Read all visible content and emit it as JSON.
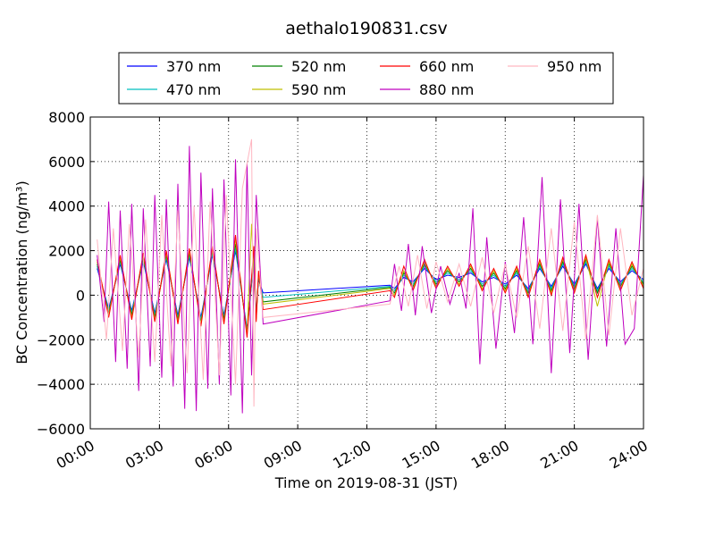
{
  "chart_data": {
    "type": "line",
    "title": "aethalo190831.csv",
    "xlabel": "Time on 2019-08-31 (JST)",
    "ylabel": "BC Concentration (ng/m³)",
    "xlim": [
      0,
      24
    ],
    "ylim": [
      -6000,
      8000
    ],
    "x_tick_values": [
      0,
      3,
      6,
      9,
      12,
      15,
      18,
      21,
      24
    ],
    "x_tick_labels": [
      "00:00",
      "03:00",
      "06:00",
      "09:00",
      "12:00",
      "15:00",
      "18:00",
      "21:00",
      "24:00"
    ],
    "y_tick_values": [
      -6000,
      -4000,
      -2000,
      0,
      2000,
      4000,
      6000,
      8000
    ],
    "y_tick_labels": [
      "−6000",
      "−4000",
      "−2000",
      "0",
      "2000",
      "4000",
      "6000",
      "8000"
    ],
    "grid": "dotted",
    "legend_position": "top-center",
    "x_unit": "hours",
    "series": [
      {
        "name": "370 nm",
        "color": "#0000ff",
        "x": [
          0.3,
          0.8,
          1.3,
          1.8,
          2.3,
          2.8,
          3.3,
          3.8,
          4.3,
          4.8,
          5.3,
          5.8,
          6.3,
          6.8,
          7.1,
          7.2,
          7.3,
          7.5,
          13.0,
          13.2,
          13.6,
          14.0,
          14.5,
          15.0,
          15.5,
          16.0,
          16.5,
          17.0,
          17.5,
          18.0,
          18.5,
          19.0,
          19.5,
          20.0,
          20.5,
          21.0,
          21.5,
          22.0,
          22.5,
          23.0,
          23.5,
          24.0
        ],
        "y": [
          1200,
          -600,
          1400,
          -700,
          1500,
          -800,
          1600,
          -900,
          1700,
          -1000,
          1800,
          -900,
          2000,
          -1500,
          1500,
          -800,
          700,
          100,
          450,
          300,
          800,
          600,
          1200,
          700,
          900,
          800,
          1000,
          600,
          800,
          500,
          900,
          300,
          1200,
          400,
          1300,
          500,
          1400,
          300,
          1200,
          600,
          1100,
          700
        ]
      },
      {
        "name": "470 nm",
        "color": "#00bfbf",
        "x": [
          0.3,
          0.8,
          1.3,
          1.8,
          2.3,
          2.8,
          3.3,
          3.8,
          4.3,
          4.8,
          5.3,
          5.8,
          6.3,
          6.8,
          7.1,
          7.2,
          7.3,
          7.5,
          13.0,
          13.2,
          13.6,
          14.0,
          14.5,
          15.0,
          15.5,
          16.0,
          16.5,
          17.0,
          17.5,
          18.0,
          18.5,
          19.0,
          19.5,
          20.0,
          20.5,
          21.0,
          21.5,
          22.0,
          22.5,
          23.0,
          23.5,
          24.0
        ],
        "y": [
          1300,
          -700,
          1500,
          -800,
          1600,
          -900,
          1700,
          -1000,
          1800,
          -1100,
          1900,
          -1000,
          2100,
          -1600,
          1600,
          -900,
          800,
          -100,
          400,
          200,
          900,
          500,
          1300,
          600,
          1000,
          700,
          1100,
          500,
          900,
          400,
          1000,
          200,
          1300,
          300,
          1400,
          400,
          1500,
          200,
          1300,
          500,
          1200,
          600
        ]
      },
      {
        "name": "520 nm",
        "color": "#008000",
        "x": [
          0.3,
          0.8,
          1.3,
          1.8,
          2.3,
          2.8,
          3.3,
          3.8,
          4.3,
          4.8,
          5.3,
          5.8,
          6.3,
          6.8,
          7.1,
          7.2,
          7.3,
          7.5,
          13.0,
          13.2,
          13.6,
          14.0,
          14.5,
          15.0,
          15.5,
          16.0,
          16.5,
          17.0,
          17.5,
          18.0,
          18.5,
          19.0,
          19.5,
          20.0,
          20.5,
          21.0,
          21.5,
          22.0,
          22.5,
          23.0,
          23.5,
          24.0
        ],
        "y": [
          1400,
          -800,
          1600,
          -900,
          1700,
          -1000,
          1800,
          -1100,
          1900,
          -1200,
          2000,
          -1100,
          2300,
          -1700,
          2000,
          -1000,
          900,
          -300,
          350,
          100,
          1000,
          400,
          1400,
          500,
          1100,
          600,
          1200,
          400,
          1000,
          300,
          1100,
          100,
          1400,
          200,
          1500,
          300,
          1600,
          100,
          1400,
          400,
          1300,
          500
        ]
      },
      {
        "name": "590 nm",
        "color": "#bfbf00",
        "x": [
          0.3,
          0.8,
          1.3,
          1.8,
          2.3,
          2.8,
          3.3,
          3.8,
          4.3,
          4.8,
          5.3,
          5.8,
          6.3,
          6.8,
          7.0,
          7.2,
          7.3,
          7.5,
          13.0,
          13.2,
          13.6,
          14.0,
          14.5,
          15.0,
          15.5,
          16.0,
          16.5,
          17.0,
          17.5,
          18.0,
          18.5,
          19.0,
          19.5,
          20.0,
          20.5,
          21.0,
          21.5,
          22.0,
          22.5,
          23.0,
          23.5,
          24.0
        ],
        "y": [
          1500,
          -900,
          1700,
          -1000,
          1800,
          -1100,
          1900,
          -1200,
          2000,
          -1300,
          2100,
          -1200,
          2500,
          -1800,
          3200,
          -1100,
          1000,
          -400,
          300,
          0,
          1100,
          300,
          1500,
          400,
          1200,
          500,
          1300,
          300,
          1100,
          200,
          1200,
          0,
          1500,
          100,
          1600,
          200,
          1700,
          -500,
          1500,
          300,
          1400,
          400
        ]
      },
      {
        "name": "660 nm",
        "color": "#ff0000",
        "x": [
          0.3,
          0.8,
          1.3,
          1.8,
          2.3,
          2.8,
          3.3,
          3.8,
          4.3,
          4.8,
          5.3,
          5.8,
          6.3,
          6.8,
          7.1,
          7.2,
          7.3,
          7.5,
          13.0,
          13.2,
          13.6,
          14.0,
          14.5,
          15.0,
          15.5,
          16.0,
          16.5,
          17.0,
          17.5,
          18.0,
          18.5,
          19.0,
          19.5,
          20.0,
          20.5,
          21.0,
          21.5,
          22.0,
          22.5,
          23.0,
          23.5,
          24.0
        ],
        "y": [
          1600,
          -1000,
          1800,
          -1100,
          1900,
          -1200,
          2000,
          -1300,
          2100,
          -1400,
          2200,
          -1300,
          2700,
          -1900,
          2200,
          -1200,
          1100,
          -650,
          200,
          -100,
          1300,
          200,
          1600,
          300,
          1300,
          400,
          1400,
          200,
          1200,
          100,
          1300,
          -100,
          1600,
          0,
          1700,
          100,
          1800,
          -100,
          1600,
          200,
          1500,
          300
        ]
      },
      {
        "name": "880 nm",
        "color": "#bf00bf",
        "x": [
          0.3,
          0.6,
          0.8,
          1.1,
          1.3,
          1.6,
          1.8,
          2.1,
          2.3,
          2.6,
          2.8,
          3.1,
          3.3,
          3.6,
          3.8,
          4.1,
          4.3,
          4.6,
          4.8,
          5.1,
          5.3,
          5.6,
          5.8,
          6.1,
          6.3,
          6.6,
          6.8,
          7.0,
          7.2,
          7.5,
          13.0,
          13.2,
          13.5,
          13.8,
          14.1,
          14.4,
          14.8,
          15.2,
          15.6,
          16.0,
          16.3,
          16.6,
          16.9,
          17.2,
          17.6,
          18.0,
          18.4,
          18.8,
          19.2,
          19.6,
          20.0,
          20.4,
          20.8,
          21.2,
          21.6,
          22.0,
          22.4,
          22.8,
          23.2,
          23.6,
          24.0
        ],
        "y": [
          1800,
          -1200,
          4200,
          -3000,
          3800,
          -3300,
          4100,
          -4300,
          3900,
          -3200,
          4500,
          -3700,
          4300,
          -4100,
          5000,
          -5100,
          6700,
          -5200,
          5500,
          -4200,
          4800,
          -4000,
          5200,
          -4500,
          6100,
          -5300,
          5900,
          -3600,
          4500,
          -1300,
          -250,
          1400,
          -700,
          2300,
          -900,
          2200,
          -800,
          1300,
          -400,
          1000,
          -600,
          3900,
          -3100,
          2600,
          -2400,
          1500,
          -1700,
          3500,
          -2200,
          5300,
          -3500,
          4300,
          -2600,
          4100,
          -2900,
          3500,
          -2300,
          3000,
          -2200,
          -1500,
          5400
        ]
      },
      {
        "name": "950 nm",
        "color": "#ffb6c1",
        "x": [
          0.3,
          0.7,
          1.0,
          1.4,
          1.7,
          2.1,
          2.4,
          2.8,
          3.1,
          3.5,
          3.8,
          4.2,
          4.5,
          4.9,
          5.2,
          5.6,
          5.9,
          6.3,
          6.6,
          7.0,
          7.1,
          7.2,
          7.5,
          13.0,
          13.4,
          13.8,
          14.2,
          14.6,
          15.0,
          15.5,
          16.0,
          16.5,
          17.0,
          17.5,
          18.0,
          18.5,
          19.0,
          19.5,
          20.0,
          20.5,
          21.0,
          21.5,
          22.0,
          22.5,
          23.0,
          23.5,
          24.0
        ],
        "y": [
          2500,
          -2000,
          3000,
          -2500,
          3200,
          -2800,
          3400,
          -3000,
          3600,
          -3200,
          3800,
          -3500,
          4000,
          -3800,
          4200,
          -3600,
          4500,
          -4000,
          4800,
          7000,
          -5000,
          3000,
          -1000,
          -400,
          1300,
          -500,
          1800,
          -600,
          1500,
          -300,
          1400,
          -500,
          1700,
          -800,
          1400,
          -1000,
          2200,
          -1500,
          3000,
          -1600,
          3300,
          -2000,
          3600,
          -1800,
          3000,
          -900,
          1200
        ]
      }
    ]
  }
}
